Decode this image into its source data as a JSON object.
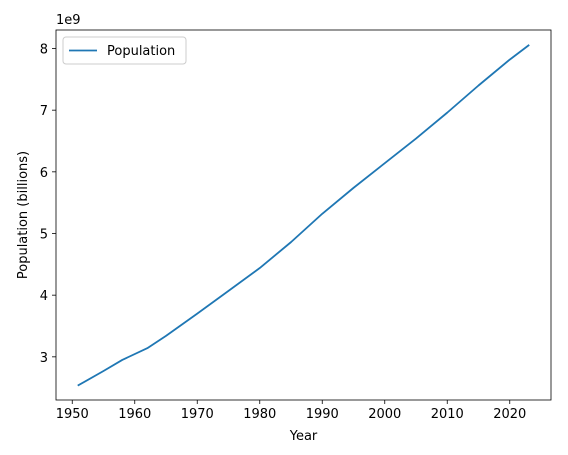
{
  "chart_data": {
    "type": "line",
    "xlabel": "Year",
    "ylabel": "Population (billions)",
    "y_offset_text": "1e9",
    "xlim": [
      1947.4,
      2026.6
    ],
    "ylim": [
      2.3,
      8.3
    ],
    "x_ticks": [
      1950,
      1960,
      1970,
      1980,
      1990,
      2000,
      2010,
      2020
    ],
    "y_ticks": [
      3,
      4,
      5,
      6,
      7,
      8
    ],
    "legend_position": "upper-left",
    "grid": false,
    "series": [
      {
        "name": "Population",
        "color": "#1f77b4",
        "x": [
          1951,
          1955,
          1958,
          1962,
          1965,
          1970,
          1975,
          1980,
          1985,
          1990,
          1995,
          2000,
          2005,
          2010,
          2015,
          2020,
          2023
        ],
        "y": [
          2.54,
          2.77,
          2.95,
          3.14,
          3.34,
          3.7,
          4.07,
          4.44,
          4.86,
          5.32,
          5.74,
          6.14,
          6.54,
          6.96,
          7.4,
          7.82,
          8.05
        ]
      }
    ]
  }
}
